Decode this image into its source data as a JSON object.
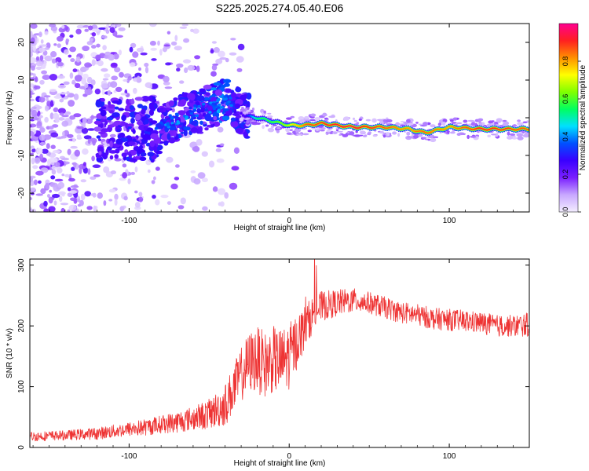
{
  "title": "S225.2025.274.05.40.E06",
  "chart_data": [
    {
      "type": "heatmap",
      "xlabel": "Height of straight line (km)",
      "ylabel": "Frequency (Hz)",
      "xlim": [
        -162,
        150
      ],
      "ylim": [
        -25,
        25
      ],
      "x_ticks": [
        -100,
        0,
        100
      ],
      "x_tick_labels": [
        "-100",
        "0",
        "100"
      ],
      "y_ticks": [
        -20,
        -10,
        0,
        10,
        20
      ],
      "y_tick_labels": [
        "-20",
        "-10",
        "0",
        "10",
        "20"
      ],
      "colorbar": {
        "label": "Normalized spectral amplitude",
        "range": [
          0,
          1
        ],
        "ticks": [
          0.0,
          0.2,
          0.4,
          0.6,
          0.8
        ],
        "tick_labels": [
          "0.0",
          "0.2",
          "0.4",
          "0.6",
          "0.8"
        ],
        "colors": [
          "#f4eeff",
          "#c8a8ff",
          "#7a1fff",
          "#3a00ff",
          "#0050ff",
          "#00e0ff",
          "#00ff60",
          "#80ff00",
          "#ffff00",
          "#ff9000",
          "#ff2020",
          "#ff0090"
        ]
      },
      "ridge": [
        {
          "x": -85,
          "y": -3.0,
          "a": 0.28
        },
        {
          "x": -75,
          "y": -1.0,
          "a": 0.3
        },
        {
          "x": -60,
          "y": 1.5,
          "a": 0.33
        },
        {
          "x": -45,
          "y": 3.5,
          "a": 0.38
        },
        {
          "x": -38,
          "y": 5.0,
          "a": 0.32
        },
        {
          "x": -28,
          "y": 0.5,
          "a": 0.25
        },
        {
          "x": -20,
          "y": 0.0,
          "a": 0.55
        },
        {
          "x": -10,
          "y": -1.0,
          "a": 0.6
        },
        {
          "x": 0,
          "y": -2.0,
          "a": 0.7
        },
        {
          "x": 10,
          "y": -2.0,
          "a": 0.85
        },
        {
          "x": 20,
          "y": -1.5,
          "a": 0.88
        },
        {
          "x": 40,
          "y": -2.5,
          "a": 0.92
        },
        {
          "x": 60,
          "y": -2.5,
          "a": 0.85
        },
        {
          "x": 75,
          "y": -3.0,
          "a": 0.8
        },
        {
          "x": 85,
          "y": -4.0,
          "a": 0.85
        },
        {
          "x": 100,
          "y": -2.5,
          "a": 0.8
        },
        {
          "x": 120,
          "y": -3.0,
          "a": 0.9
        },
        {
          "x": 150,
          "y": -3.0,
          "a": 0.85
        }
      ]
    },
    {
      "type": "line",
      "xlabel": "Height of straight line (km)",
      "ylabel": "SNR (10 * v/v)",
      "xlim": [
        -162,
        150
      ],
      "ylim": [
        0,
        310
      ],
      "x_ticks": [
        -100,
        0,
        100
      ],
      "x_tick_labels": [
        "-100",
        "0",
        "100"
      ],
      "y_ticks": [
        0,
        100,
        200,
        300
      ],
      "y_tick_labels": [
        "0",
        "100",
        "200",
        "300"
      ],
      "color": "#ee3333",
      "series": [
        {
          "name": "SNR",
          "x": [
            -162,
            -140,
            -120,
            -100,
            -90,
            -80,
            -70,
            -60,
            -50,
            -40,
            -35,
            -30,
            -25,
            -20,
            -15,
            -10,
            -5,
            0,
            5,
            10,
            15,
            20,
            30,
            40,
            50,
            60,
            70,
            80,
            90,
            100,
            110,
            120,
            130,
            140,
            150
          ],
          "y": [
            18,
            20,
            23,
            30,
            33,
            38,
            42,
            48,
            55,
            70,
            95,
            120,
            140,
            145,
            135,
            145,
            140,
            150,
            175,
            200,
            220,
            232,
            238,
            242,
            238,
            230,
            222,
            218,
            212,
            210,
            208,
            205,
            200,
            200,
            202
          ],
          "spread": [
            8,
            8,
            10,
            12,
            14,
            15,
            18,
            20,
            25,
            35,
            40,
            45,
            50,
            55,
            55,
            55,
            55,
            55,
            45,
            35,
            30,
            25,
            22,
            20,
            18,
            18,
            18,
            18,
            18,
            18,
            18,
            18,
            18,
            18,
            20
          ]
        }
      ]
    }
  ]
}
